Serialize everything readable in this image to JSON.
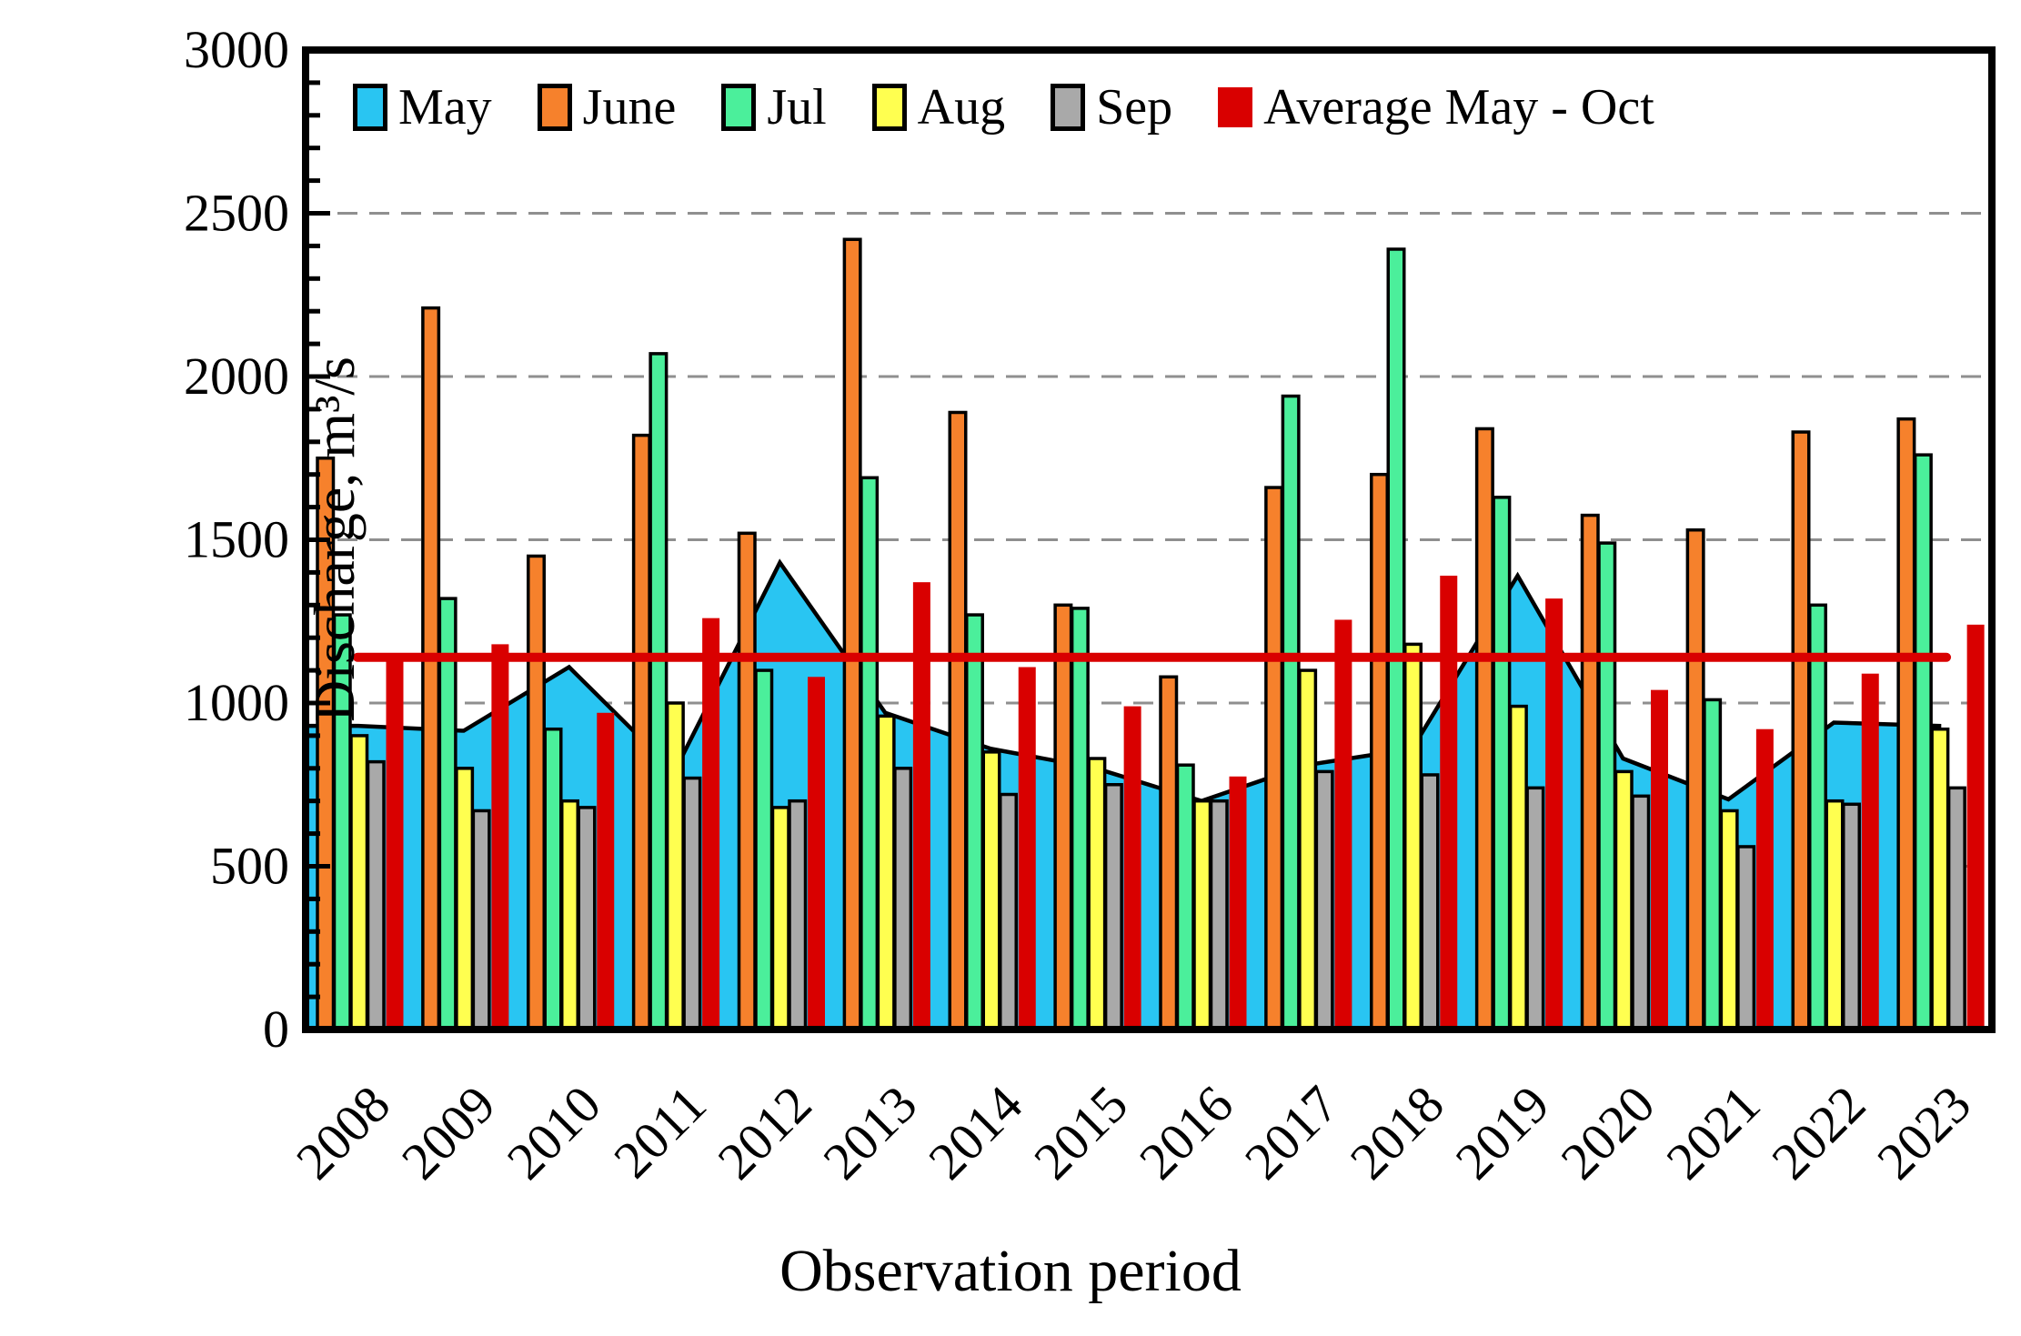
{
  "chart_data": {
    "type": "combo-bar-area-line",
    "title": "",
    "xlabel": "Observation period",
    "ylabel": "Discharge, m³/s",
    "ylim": [
      0,
      3000
    ],
    "ytick_step": 500,
    "yminor_step": 100,
    "grid": "horizontal dashed at 500..2500",
    "legend_position": "top-inside",
    "categories": [
      "2008",
      "2009",
      "2010",
      "2011",
      "2012",
      "2013",
      "2014",
      "2015",
      "2016",
      "2017",
      "2018",
      "2019",
      "2020",
      "2021",
      "2022",
      "2023"
    ],
    "series": [
      {
        "name": "May",
        "type": "area",
        "color": "#29C5F2",
        "values": [
          930,
          915,
          1110,
          790,
          1430,
          970,
          860,
          800,
          700,
          810,
          860,
          1390,
          830,
          705,
          940,
          930
        ]
      },
      {
        "name": "June",
        "type": "bar",
        "color": "#F6812C",
        "values": [
          1750,
          2210,
          1450,
          1820,
          1520,
          2420,
          1890,
          1300,
          1080,
          1660,
          1700,
          1840,
          1575,
          1530,
          1830,
          1870
        ]
      },
      {
        "name": "Jul",
        "type": "bar",
        "color": "#4BEF9B",
        "values": [
          1270,
          1320,
          920,
          2070,
          1100,
          1690,
          1270,
          1290,
          810,
          1940,
          2390,
          1630,
          1490,
          1010,
          1300,
          1760
        ]
      },
      {
        "name": "Aug",
        "type": "bar",
        "color": "#FFFF50",
        "values": [
          900,
          800,
          700,
          1000,
          680,
          960,
          850,
          830,
          700,
          1100,
          1180,
          990,
          790,
          670,
          700,
          920
        ]
      },
      {
        "name": "Sep",
        "type": "bar",
        "color": "#A9A9A9",
        "values": [
          820,
          670,
          680,
          770,
          700,
          800,
          720,
          750,
          700,
          790,
          780,
          740,
          715,
          560,
          690,
          740
        ]
      },
      {
        "name": "Average May - Oct",
        "type": "bar-line",
        "color": "#D90000",
        "values": [
          1145,
          1180,
          970,
          1260,
          1080,
          1370,
          1110,
          990,
          775,
          1255,
          1390,
          1320,
          1040,
          920,
          1090,
          1240
        ],
        "line_value": 1140
      }
    ]
  }
}
